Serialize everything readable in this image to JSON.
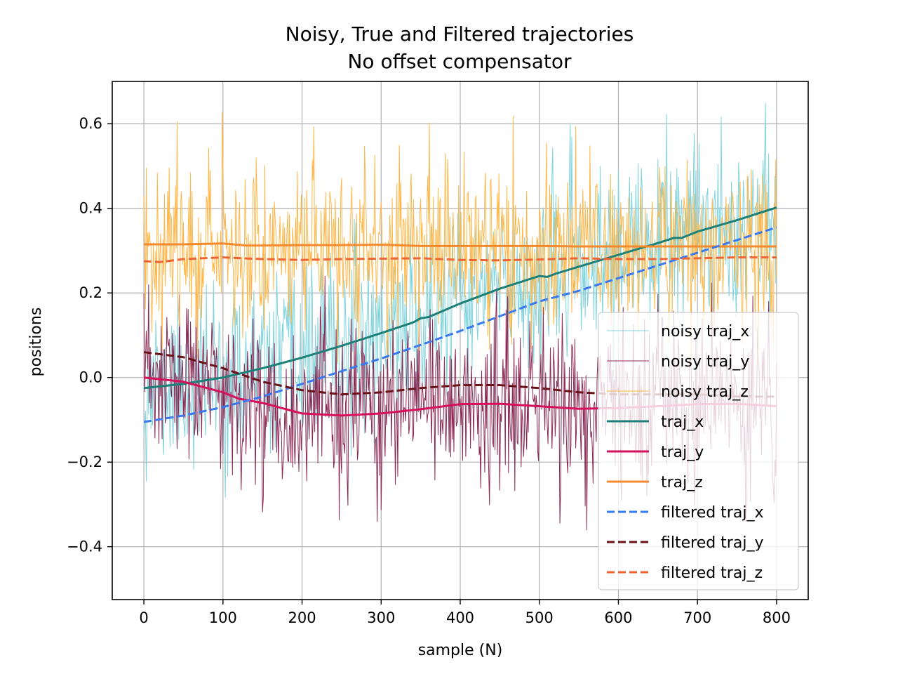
{
  "chart_data": {
    "type": "line",
    "title": "Noisy, True and Filtered trajectories",
    "subtitle": "No offset compensator",
    "xlabel": "sample (N)",
    "ylabel": "positions",
    "xlim": [
      -40,
      840
    ],
    "ylim": [
      -0.525,
      0.7
    ],
    "xticks": [
      0,
      100,
      200,
      300,
      400,
      500,
      600,
      700,
      800
    ],
    "yticks": [
      -0.4,
      -0.2,
      0.0,
      0.2,
      0.4,
      0.6
    ],
    "ytick_labels": [
      "−0.4",
      "−0.2",
      "0.0",
      "0.2",
      "0.4",
      "0.6"
    ],
    "grid": true,
    "legend_position": "lower-right",
    "noisy_series": [
      {
        "name": "noisy traj_x",
        "color": "#7fd3dc",
        "base": "traj_x",
        "noise_sd": 0.1,
        "seed": 11
      },
      {
        "name": "noisy traj_y",
        "color": "#8b2a55",
        "base": "traj_y",
        "noise_sd": 0.1,
        "seed": 23
      },
      {
        "name": "noisy traj_z",
        "color": "#ffb74a",
        "base": "traj_z",
        "noise_sd": 0.1,
        "seed": 37
      }
    ],
    "series": [
      {
        "name": "traj_x",
        "color": "#1d8078",
        "style": "solid",
        "points": [
          [
            0,
            -0.025
          ],
          [
            50,
            -0.015
          ],
          [
            100,
            0.0
          ],
          [
            150,
            0.022
          ],
          [
            200,
            0.047
          ],
          [
            250,
            0.075
          ],
          [
            300,
            0.105
          ],
          [
            340,
            0.13
          ],
          [
            350,
            0.14
          ],
          [
            360,
            0.143
          ],
          [
            400,
            0.175
          ],
          [
            450,
            0.21
          ],
          [
            500,
            0.24
          ],
          [
            510,
            0.238
          ],
          [
            520,
            0.245
          ],
          [
            550,
            0.262
          ],
          [
            600,
            0.29
          ],
          [
            650,
            0.318
          ],
          [
            670,
            0.33
          ],
          [
            680,
            0.33
          ],
          [
            700,
            0.345
          ],
          [
            750,
            0.372
          ],
          [
            800,
            0.402
          ]
        ]
      },
      {
        "name": "traj_y",
        "color": "#d6115b",
        "style": "solid",
        "points": [
          [
            0,
            0.0
          ],
          [
            50,
            -0.01
          ],
          [
            100,
            -0.035
          ],
          [
            120,
            -0.05
          ],
          [
            150,
            -0.06
          ],
          [
            200,
            -0.085
          ],
          [
            250,
            -0.09
          ],
          [
            300,
            -0.085
          ],
          [
            350,
            -0.075
          ],
          [
            400,
            -0.063
          ],
          [
            450,
            -0.062
          ],
          [
            500,
            -0.068
          ],
          [
            550,
            -0.074
          ],
          [
            600,
            -0.072
          ],
          [
            650,
            -0.068
          ],
          [
            700,
            -0.063
          ],
          [
            750,
            -0.062
          ],
          [
            800,
            -0.068
          ]
        ]
      },
      {
        "name": "traj_z",
        "color": "#f58a2e",
        "style": "solid",
        "points": [
          [
            0,
            0.315
          ],
          [
            50,
            0.315
          ],
          [
            100,
            0.317
          ],
          [
            130,
            0.312
          ],
          [
            150,
            0.312
          ],
          [
            200,
            0.313
          ],
          [
            250,
            0.313
          ],
          [
            300,
            0.314
          ],
          [
            350,
            0.311
          ],
          [
            400,
            0.311
          ],
          [
            450,
            0.311
          ],
          [
            500,
            0.311
          ],
          [
            550,
            0.31
          ],
          [
            600,
            0.31
          ],
          [
            650,
            0.31
          ],
          [
            700,
            0.31
          ],
          [
            750,
            0.31
          ],
          [
            800,
            0.31
          ]
        ]
      },
      {
        "name": "filtered traj_x",
        "color": "#3b78f0",
        "style": "dashed",
        "points": [
          [
            0,
            -0.105
          ],
          [
            50,
            -0.09
          ],
          [
            100,
            -0.07
          ],
          [
            150,
            -0.045
          ],
          [
            200,
            -0.015
          ],
          [
            250,
            0.015
          ],
          [
            300,
            0.045
          ],
          [
            350,
            0.077
          ],
          [
            400,
            0.11
          ],
          [
            450,
            0.145
          ],
          [
            500,
            0.18
          ],
          [
            550,
            0.205
          ],
          [
            600,
            0.235
          ],
          [
            650,
            0.265
          ],
          [
            700,
            0.295
          ],
          [
            750,
            0.325
          ],
          [
            800,
            0.355
          ]
        ]
      },
      {
        "name": "filtered traj_y",
        "color": "#6b1218",
        "style": "dashed",
        "points": [
          [
            0,
            0.06
          ],
          [
            50,
            0.048
          ],
          [
            100,
            0.022
          ],
          [
            150,
            -0.01
          ],
          [
            200,
            -0.03
          ],
          [
            250,
            -0.04
          ],
          [
            300,
            -0.035
          ],
          [
            350,
            -0.025
          ],
          [
            400,
            -0.018
          ],
          [
            450,
            -0.018
          ],
          [
            500,
            -0.025
          ],
          [
            550,
            -0.035
          ],
          [
            600,
            -0.04
          ],
          [
            650,
            -0.04
          ],
          [
            700,
            -0.04
          ],
          [
            750,
            -0.045
          ],
          [
            800,
            -0.045
          ]
        ]
      },
      {
        "name": "filtered traj_z",
        "color": "#ee6433",
        "style": "dashed",
        "points": [
          [
            0,
            0.275
          ],
          [
            20,
            0.273
          ],
          [
            50,
            0.28
          ],
          [
            100,
            0.284
          ],
          [
            150,
            0.28
          ],
          [
            200,
            0.278
          ],
          [
            250,
            0.28
          ],
          [
            300,
            0.281
          ],
          [
            350,
            0.282
          ],
          [
            400,
            0.278
          ],
          [
            450,
            0.277
          ],
          [
            500,
            0.279
          ],
          [
            550,
            0.282
          ],
          [
            600,
            0.28
          ],
          [
            650,
            0.28
          ],
          [
            700,
            0.282
          ],
          [
            750,
            0.284
          ],
          [
            800,
            0.284
          ]
        ]
      }
    ],
    "legend_order": [
      "noisy traj_x",
      "noisy traj_y",
      "noisy traj_z",
      "traj_x",
      "traj_y",
      "traj_z",
      "filtered traj_x",
      "filtered traj_y",
      "filtered traj_z"
    ]
  }
}
